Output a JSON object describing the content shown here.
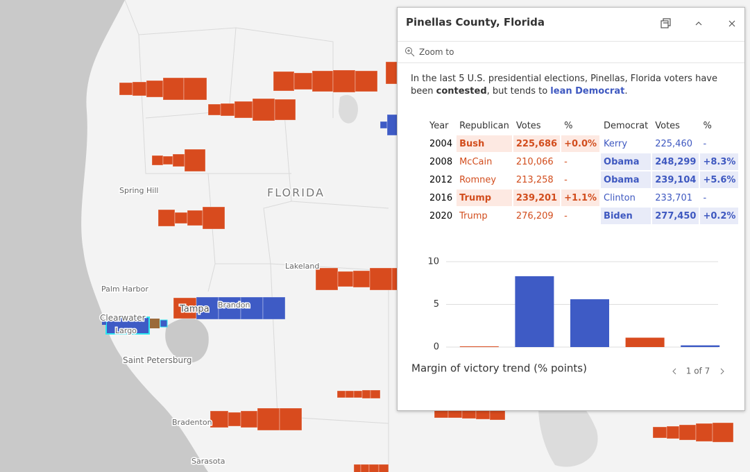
{
  "map": {
    "labels": [
      "Spring Hill",
      "FLORIDA",
      "Lakeland",
      "Palm Harbor",
      "Tampa",
      "Brandon",
      "Clearwater",
      "Largo",
      "Saint Petersburg",
      "Bradenton",
      "Sarasota"
    ]
  },
  "popup": {
    "title": "Pinellas County, Florida",
    "zoom": "Zoom to",
    "description": [
      "In the last 5 U.S. presidential elections, Pinellas, Florida voters have been ",
      "contested",
      ", but tends to ",
      "lean Democrat",
      "."
    ],
    "table": {
      "header": [
        "Year",
        "Republican",
        "Votes",
        "%",
        "Democrat",
        "Votes",
        "%"
      ],
      "rows": [
        [
          "2004",
          "Bush",
          "225,686",
          "+0.0%",
          "Kerry",
          "225,460",
          "-"
        ],
        [
          "2008",
          "McCain",
          "210,066",
          "-",
          "Obama",
          "248,299",
          "+8.3%"
        ],
        [
          "2012",
          "Romney",
          "213,258",
          "-",
          "Obama",
          "239,104",
          "+5.6%"
        ],
        [
          "2016",
          "Trump",
          "239,201",
          "+1.1%",
          "Clinton",
          "233,701",
          "-"
        ],
        [
          "2020",
          "Trump",
          "276,209",
          "-",
          "Biden",
          "277,450",
          "+0.2%"
        ]
      ]
    },
    "chart_data": {
      "type": "bar",
      "title": "Margin of victory trend (% points)",
      "values": [
        0.0,
        8.3,
        5.6,
        1.1,
        0.2
      ],
      "colors": [
        "#d84b1e",
        "#3e5bc5",
        "#3e5bc5",
        "#d84b1e",
        "#3e5bc5"
      ],
      "ylim": [
        0,
        10
      ],
      "yticks": [
        0,
        5,
        10
      ],
      "grid": true
    },
    "pager": "1 of 7"
  }
}
